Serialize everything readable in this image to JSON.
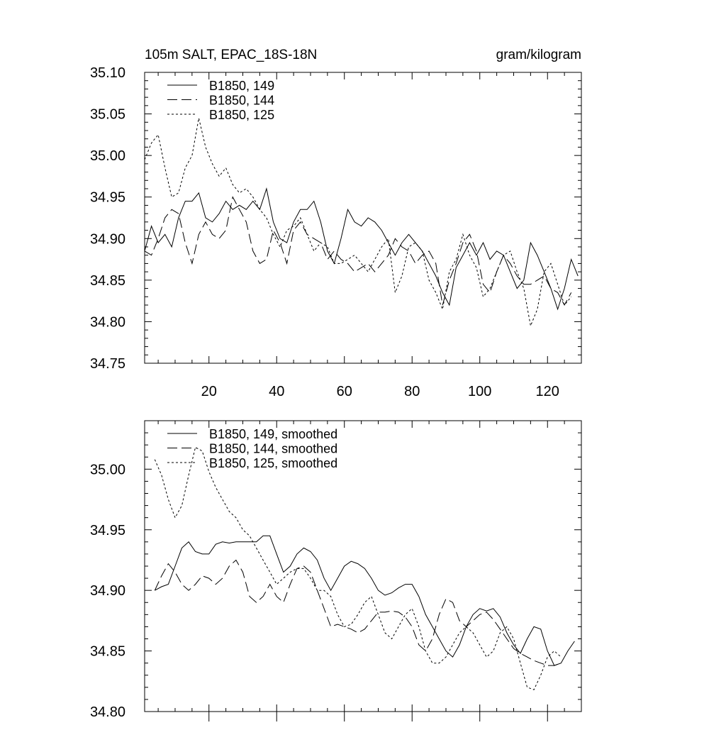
{
  "chart_data": [
    {
      "type": "line",
      "title_left": "105m SALT, EPAC_18S-18N",
      "title_right": "gram/kilogram",
      "xlim": [
        1,
        130
      ],
      "ylim": [
        34.75,
        35.1
      ],
      "xticks": [
        20,
        40,
        60,
        80,
        100,
        120
      ],
      "xtick_labels": [
        "20",
        "40",
        "60",
        "80",
        "100",
        "120"
      ],
      "yticks": [
        34.75,
        34.8,
        34.85,
        34.9,
        34.95,
        35.0,
        35.05,
        35.1
      ],
      "ytick_labels": [
        "34.75",
        "34.80",
        "34.85",
        "34.90",
        "34.95",
        "35.00",
        "35.05",
        "35.10"
      ],
      "legend_position": "top-left",
      "series": [
        {
          "name": "B1850, 149",
          "style": "solid",
          "x": [
            1,
            3,
            5,
            7,
            9,
            11,
            13,
            15,
            17,
            19,
            21,
            23,
            25,
            27,
            29,
            31,
            33,
            35,
            37,
            39,
            41,
            43,
            45,
            47,
            49,
            51,
            53,
            55,
            57,
            59,
            61,
            63,
            65,
            67,
            69,
            71,
            73,
            75,
            77,
            79,
            81,
            83,
            85,
            87,
            89,
            91,
            93,
            95,
            97,
            99,
            101,
            103,
            105,
            107,
            109,
            111,
            113,
            115,
            117,
            119,
            121,
            123,
            125,
            127,
            129
          ],
          "y": [
            34.885,
            34.915,
            34.895,
            34.905,
            34.89,
            34.925,
            34.945,
            34.945,
            34.955,
            34.925,
            34.92,
            34.93,
            34.945,
            34.935,
            34.94,
            34.935,
            34.945,
            34.935,
            34.96,
            34.92,
            34.9,
            34.895,
            34.92,
            34.935,
            34.935,
            34.945,
            34.92,
            34.885,
            34.87,
            34.9,
            34.935,
            34.92,
            34.915,
            34.925,
            34.92,
            34.91,
            34.895,
            34.88,
            34.895,
            34.905,
            34.895,
            34.885,
            34.87,
            34.855,
            34.835,
            34.82,
            34.865,
            34.88,
            34.895,
            34.88,
            34.895,
            34.875,
            34.885,
            34.88,
            34.86,
            34.84,
            34.85,
            34.895,
            34.88,
            34.86,
            34.84,
            34.815,
            34.84,
            34.875,
            34.855
          ]
        },
        {
          "name": "B1850, 144",
          "style": "dashed",
          "x": [
            1,
            3,
            5,
            7,
            9,
            11,
            13,
            15,
            17,
            19,
            21,
            23,
            25,
            27,
            29,
            31,
            33,
            35,
            37,
            39,
            41,
            43,
            45,
            47,
            49,
            51,
            53,
            55,
            57,
            59,
            61,
            63,
            65,
            67,
            69,
            71,
            73,
            75,
            77,
            79,
            81,
            83,
            85,
            87,
            89,
            91,
            93,
            95,
            97,
            99,
            101,
            103,
            105,
            107,
            109,
            111,
            113,
            115,
            117,
            119,
            121,
            123,
            125,
            127
          ],
          "y": [
            34.885,
            34.88,
            34.9,
            34.925,
            34.935,
            34.93,
            34.895,
            34.87,
            34.905,
            34.92,
            34.905,
            34.9,
            34.91,
            34.95,
            34.935,
            34.92,
            34.885,
            34.87,
            34.875,
            34.91,
            34.895,
            34.87,
            34.91,
            34.92,
            34.905,
            34.9,
            34.895,
            34.875,
            34.885,
            34.875,
            34.87,
            34.86,
            34.865,
            34.87,
            34.86,
            34.87,
            34.88,
            34.9,
            34.89,
            34.885,
            34.87,
            34.88,
            34.885,
            34.87,
            34.82,
            34.85,
            34.87,
            34.895,
            34.905,
            34.885,
            34.845,
            34.835,
            34.86,
            34.88,
            34.87,
            34.855,
            34.845,
            34.845,
            34.85,
            34.855,
            34.84,
            34.835,
            34.82,
            34.835
          ]
        },
        {
          "name": "B1850, 125",
          "style": "dotted",
          "x": [
            1,
            3,
            5,
            7,
            9,
            11,
            13,
            15,
            17,
            19,
            21,
            23,
            25,
            27,
            29,
            31,
            33,
            35,
            37,
            39,
            41,
            43,
            45,
            47,
            49,
            51,
            53,
            55,
            57,
            59,
            61,
            63,
            65,
            67,
            69,
            71,
            73,
            75,
            77,
            79,
            81,
            83,
            85,
            87,
            89,
            91,
            93,
            95,
            97,
            99,
            101,
            103,
            105,
            107,
            109,
            111,
            113,
            115,
            117,
            119,
            121,
            123,
            125,
            127
          ],
          "y": [
            34.995,
            35.015,
            35.025,
            34.985,
            34.95,
            34.955,
            34.985,
            35.0,
            35.045,
            35.01,
            34.99,
            34.975,
            34.985,
            34.965,
            34.955,
            34.96,
            34.95,
            34.935,
            34.925,
            34.905,
            34.89,
            34.91,
            34.915,
            34.925,
            34.905,
            34.885,
            34.895,
            34.89,
            34.87,
            34.87,
            34.875,
            34.88,
            34.87,
            34.86,
            34.875,
            34.89,
            34.9,
            34.835,
            34.855,
            34.89,
            34.895,
            34.885,
            34.85,
            34.835,
            34.815,
            34.86,
            34.875,
            34.905,
            34.88,
            34.865,
            34.83,
            34.84,
            34.86,
            34.88,
            34.885,
            34.86,
            34.84,
            34.795,
            34.815,
            34.86,
            34.87,
            34.845,
            34.82,
            34.83
          ]
        }
      ]
    },
    {
      "type": "line",
      "xlim": [
        1,
        130
      ],
      "ylim": [
        34.8,
        35.04
      ],
      "xticks": [
        20,
        40,
        60,
        80,
        100,
        120
      ],
      "xtick_labels": [],
      "yticks": [
        34.8,
        34.85,
        34.9,
        34.95,
        35.0
      ],
      "ytick_labels": [
        "34.80",
        "34.85",
        "34.90",
        "34.95",
        "35.00"
      ],
      "legend_position": "top-left",
      "series": [
        {
          "name": "B1850, 149, smoothed",
          "style": "solid",
          "x": [
            4,
            6,
            8,
            10,
            12,
            14,
            16,
            18,
            20,
            22,
            24,
            26,
            28,
            30,
            32,
            34,
            36,
            38,
            40,
            42,
            44,
            46,
            48,
            50,
            52,
            54,
            56,
            58,
            60,
            62,
            64,
            66,
            68,
            70,
            72,
            74,
            76,
            78,
            80,
            82,
            84,
            86,
            88,
            90,
            92,
            94,
            96,
            98,
            100,
            102,
            104,
            106,
            108,
            110,
            112,
            114,
            116,
            118,
            120,
            122,
            124,
            126,
            128
          ],
          "y": [
            34.9,
            34.903,
            34.905,
            34.92,
            34.935,
            34.94,
            34.932,
            34.93,
            34.93,
            34.938,
            34.94,
            34.939,
            34.94,
            34.94,
            34.94,
            34.94,
            34.945,
            34.945,
            34.93,
            34.915,
            34.92,
            34.93,
            34.935,
            34.932,
            34.925,
            34.91,
            34.9,
            34.91,
            34.92,
            34.924,
            34.922,
            34.918,
            34.91,
            34.9,
            34.896,
            34.898,
            34.902,
            34.905,
            34.905,
            34.895,
            34.88,
            34.87,
            34.86,
            34.85,
            34.845,
            34.855,
            34.87,
            34.88,
            34.885,
            34.883,
            34.885,
            34.878,
            34.865,
            34.855,
            34.848,
            34.86,
            34.87,
            34.868,
            34.85,
            34.838,
            34.84,
            34.85,
            34.858
          ]
        },
        {
          "name": "B1850, 144, smoothed",
          "style": "dashed",
          "x": [
            4,
            6,
            8,
            10,
            12,
            14,
            16,
            18,
            20,
            22,
            24,
            26,
            28,
            30,
            32,
            34,
            36,
            38,
            40,
            42,
            44,
            46,
            48,
            50,
            52,
            54,
            56,
            58,
            60,
            62,
            64,
            66,
            68,
            70,
            72,
            74,
            76,
            78,
            80,
            82,
            84,
            86,
            88,
            90,
            92,
            94,
            96,
            98,
            100,
            102,
            104,
            106,
            108,
            110,
            112,
            114,
            116,
            118,
            120,
            122,
            124
          ],
          "y": [
            34.9,
            34.912,
            34.922,
            34.915,
            34.905,
            34.9,
            34.905,
            34.912,
            34.91,
            34.905,
            34.91,
            34.92,
            34.925,
            34.915,
            34.895,
            34.89,
            34.895,
            34.905,
            34.895,
            34.89,
            34.905,
            34.918,
            34.92,
            34.915,
            34.9,
            34.885,
            34.87,
            34.872,
            34.87,
            34.868,
            34.865,
            34.868,
            34.875,
            34.882,
            34.882,
            34.883,
            34.882,
            34.878,
            34.87,
            34.855,
            34.85,
            34.86,
            34.88,
            34.893,
            34.89,
            34.875,
            34.87,
            34.875,
            34.88,
            34.882,
            34.876,
            34.868,
            34.86,
            34.852,
            34.848,
            34.845,
            34.842,
            34.84,
            34.838,
            34.838,
            34.84
          ]
        },
        {
          "name": "B1850, 125, smoothed",
          "style": "dotted",
          "x": [
            4,
            6,
            8,
            10,
            12,
            14,
            16,
            18,
            20,
            22,
            24,
            26,
            28,
            30,
            32,
            34,
            36,
            38,
            40,
            42,
            44,
            46,
            48,
            50,
            52,
            54,
            56,
            58,
            60,
            62,
            64,
            66,
            68,
            70,
            72,
            74,
            76,
            78,
            80,
            82,
            84,
            86,
            88,
            90,
            92,
            94,
            96,
            98,
            100,
            102,
            104,
            106,
            108,
            110,
            112,
            114,
            116,
            118,
            120,
            122,
            124
          ],
          "y": [
            35.008,
            34.995,
            34.975,
            34.96,
            34.97,
            34.995,
            35.018,
            35.015,
            34.998,
            34.985,
            34.975,
            34.965,
            34.96,
            34.95,
            34.945,
            34.935,
            34.925,
            34.915,
            34.905,
            34.91,
            34.915,
            34.918,
            34.918,
            34.91,
            34.9,
            34.9,
            34.895,
            34.88,
            34.87,
            34.872,
            34.88,
            34.89,
            34.895,
            34.88,
            34.865,
            34.86,
            34.87,
            34.88,
            34.885,
            34.87,
            34.85,
            34.84,
            34.84,
            34.845,
            34.855,
            34.865,
            34.87,
            34.865,
            34.855,
            34.845,
            34.85,
            34.865,
            34.87,
            34.86,
            34.84,
            34.82,
            34.818,
            34.83,
            34.845,
            34.85,
            34.845
          ]
        }
      ]
    }
  ]
}
